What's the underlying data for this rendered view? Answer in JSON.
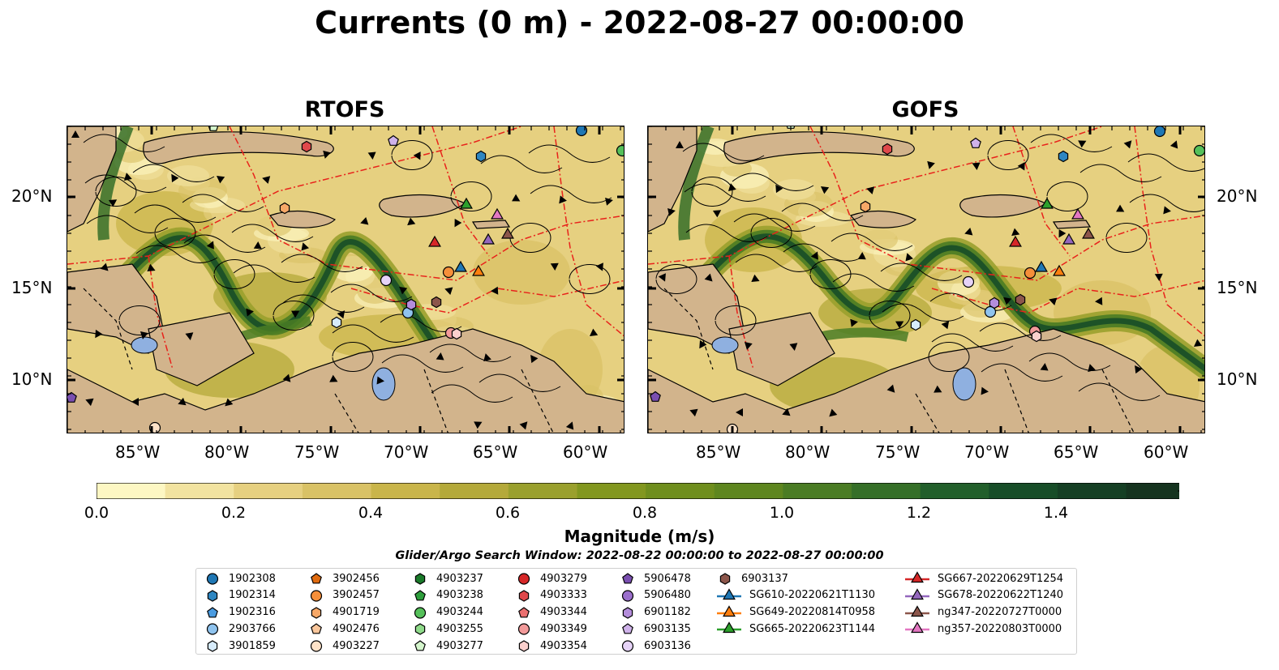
{
  "title": "Currents (0 m) - 2022-08-27 00:00:00",
  "panels": [
    {
      "name": "RTOFS"
    },
    {
      "name": "GOFS"
    }
  ],
  "lat_ticks": [
    "20°N",
    "15°N",
    "10°N"
  ],
  "lon_ticks": [
    "85°W",
    "80°W",
    "75°W",
    "70°W",
    "65°W",
    "60°W"
  ],
  "colorbar": {
    "label": "Magnitude (m/s)",
    "ticks": [
      "0.0",
      "0.2",
      "0.4",
      "0.6",
      "0.8",
      "1.0",
      "1.2",
      "1.4"
    ],
    "colors": [
      "#fdf7c3",
      "#f2e3a0",
      "#e6d080",
      "#d9c266",
      "#c9b54a",
      "#b4a93a",
      "#9aa02d",
      "#82971f",
      "#6f8e1d",
      "#5e861f",
      "#4a7c24",
      "#356f28",
      "#225f2b",
      "#174d28",
      "#153f24",
      "#15331f",
      "#17291b",
      "#1b1f17"
    ]
  },
  "search_window": "Glider/Argo Search Window: 2022-08-22 00:00:00 to 2022-08-27 00:00:00",
  "legend": {
    "columns": [
      [
        {
          "label": "1902308",
          "marker": "circle",
          "color": "#1f77b4"
        },
        {
          "label": "1902314",
          "marker": "hexagon",
          "color": "#2e86c1"
        },
        {
          "label": "1902316",
          "marker": "pentagon",
          "color": "#4a9be0"
        },
        {
          "label": "2903766",
          "marker": "circle",
          "color": "#8fc3ee"
        },
        {
          "label": "3901859",
          "marker": "hexagon",
          "color": "#d6ebfb"
        }
      ],
      [
        {
          "label": "3902456",
          "marker": "pentagon",
          "color": "#e06b10"
        },
        {
          "label": "3902457",
          "marker": "circle",
          "color": "#f58f3a"
        },
        {
          "label": "4901719",
          "marker": "hexagon",
          "color": "#f7a867"
        },
        {
          "label": "4902476",
          "marker": "pentagon",
          "color": "#fac79c"
        },
        {
          "label": "4903227",
          "marker": "circle",
          "color": "#fde2c8"
        }
      ],
      [
        {
          "label": "4903237",
          "marker": "hexagon",
          "color": "#1a7a2a"
        },
        {
          "label": "4903238",
          "marker": "pentagon",
          "color": "#2e9e3c"
        },
        {
          "label": "4903244",
          "marker": "circle",
          "color": "#55c05a"
        },
        {
          "label": "4903255",
          "marker": "hexagon",
          "color": "#8fda8a"
        },
        {
          "label": "4903277",
          "marker": "pentagon",
          "color": "#d4f5cc"
        }
      ],
      [
        {
          "label": "4903279",
          "marker": "circle",
          "color": "#d62728"
        },
        {
          "label": "4903333",
          "marker": "hexagon",
          "color": "#e0484b"
        },
        {
          "label": "4903344",
          "marker": "pentagon",
          "color": "#eb7070"
        },
        {
          "label": "4903349",
          "marker": "circle",
          "color": "#f29a9a"
        },
        {
          "label": "4903354",
          "marker": "hexagon",
          "color": "#fbd0cd"
        }
      ],
      [
        {
          "label": "5906478",
          "marker": "pentagon",
          "color": "#7a4fb0"
        },
        {
          "label": "5906480",
          "marker": "circle",
          "color": "#9b6fcc"
        },
        {
          "label": "6901182",
          "marker": "hexagon",
          "color": "#b48ddb"
        },
        {
          "label": "6903135",
          "marker": "pentagon",
          "color": "#cfb2ea"
        },
        {
          "label": "6903136",
          "marker": "circle",
          "color": "#e6d3f7"
        }
      ],
      [
        {
          "label": "6903137",
          "marker": "hexagon",
          "color": "#8c564b"
        },
        {
          "label": "SG610-20220621T1130",
          "marker": "triangle",
          "color": "#1f77b4"
        },
        {
          "label": "SG649-20220814T0958",
          "marker": "triangle",
          "color": "#ff7f0e"
        },
        {
          "label": "SG665-20220623T1144",
          "marker": "triangle",
          "color": "#2ca02c"
        }
      ],
      [
        {
          "label": "SG667-20220629T1254",
          "marker": "triangle",
          "color": "#d62728"
        },
        {
          "label": "SG678-20220622T1240",
          "marker": "triangle",
          "color": "#9467bd"
        },
        {
          "label": "ng347-20220727T0000",
          "marker": "triangle",
          "color": "#8c564b"
        },
        {
          "label": "ng357-20220803T0000",
          "marker": "triangle",
          "color": "#e377c2"
        }
      ]
    ]
  }
}
